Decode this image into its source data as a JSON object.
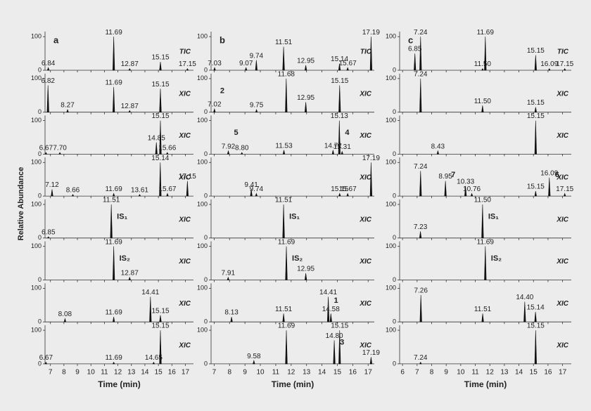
{
  "ylabel": "Relative Abundance",
  "chart_data": [
    {
      "type": "line",
      "label": "a",
      "xlabel": "Time (min)",
      "xlim": [
        6.6,
        17.6
      ],
      "xticks": [
        7,
        8,
        9,
        10,
        11,
        12,
        13,
        14,
        15,
        16,
        17
      ],
      "ylim": [
        0,
        115
      ],
      "yticks": [
        0,
        100
      ],
      "panels": [
        {
          "trace": "TIC",
          "peaks": [
            {
              "x": 6.84,
              "label": "6.84",
              "y": 8
            },
            {
              "x": 11.69,
              "label": "11.69",
              "y": 100
            },
            {
              "x": 12.87,
              "label": "12.87",
              "y": 5
            },
            {
              "x": 15.15,
              "label": "15.15",
              "y": 25
            },
            {
              "x": 17.15,
              "label": "17.15",
              "y": 5
            }
          ]
        },
        {
          "trace": "XIC",
          "peaks": [
            {
              "x": 6.82,
              "label": "6.82",
              "y": 80
            },
            {
              "x": 8.27,
              "label": "8.27",
              "y": 8
            },
            {
              "x": 11.69,
              "label": "11.69",
              "y": 75
            },
            {
              "x": 12.87,
              "label": "12.87",
              "y": 5
            },
            {
              "x": 15.15,
              "label": "15.15",
              "y": 70
            }
          ]
        },
        {
          "trace": "XIC",
          "peaks": [
            {
              "x": 6.67,
              "label": "6.67",
              "y": 5
            },
            {
              "x": 7.7,
              "label": "7.70",
              "y": 5
            },
            {
              "x": 14.85,
              "label": "14.85",
              "y": 35
            },
            {
              "x": 15.15,
              "label": "15.15",
              "y": 100
            },
            {
              "x": 15.66,
              "label": "15.66",
              "y": 5
            }
          ]
        },
        {
          "trace": "XIC",
          "peaks": [
            {
              "x": 7.12,
              "label": "7.12",
              "y": 20
            },
            {
              "x": 8.66,
              "label": "8.66",
              "y": 5
            },
            {
              "x": 11.69,
              "label": "11.69",
              "y": 8
            },
            {
              "x": 13.61,
              "label": "13.61",
              "y": 5
            },
            {
              "x": 15.14,
              "label": "15.14",
              "y": 100
            },
            {
              "x": 15.67,
              "label": "15.67",
              "y": 8
            },
            {
              "x": 17.15,
              "label": "17.15",
              "y": 45
            }
          ]
        },
        {
          "trace": "XIC",
          "peaks": [
            {
              "x": 6.85,
              "label": "6.85",
              "y": 4
            },
            {
              "x": 11.51,
              "label": "11.51",
              "y": 100,
              "note": "IS₁"
            }
          ]
        },
        {
          "trace": "XIC",
          "peaks": [
            {
              "x": 11.69,
              "label": "11.69",
              "y": 100,
              "note": "IS₂"
            },
            {
              "x": 12.87,
              "label": "12.87",
              "y": 8
            }
          ]
        },
        {
          "trace": "XIC",
          "peaks": [
            {
              "x": 8.08,
              "label": "8.08",
              "y": 10
            },
            {
              "x": 11.69,
              "label": "11.69",
              "y": 15
            },
            {
              "x": 14.41,
              "label": "14.41",
              "y": 75
            },
            {
              "x": 15.15,
              "label": "15.15",
              "y": 20
            }
          ]
        },
        {
          "trace": "XIC",
          "peaks": [
            {
              "x": 6.67,
              "label": "6.67",
              "y": 5
            },
            {
              "x": 11.69,
              "label": "11.69",
              "y": 5
            },
            {
              "x": 14.65,
              "label": "14.65",
              "y": 5
            },
            {
              "x": 15.15,
              "label": "15.15",
              "y": 100
            }
          ]
        }
      ]
    },
    {
      "type": "line",
      "label": "b",
      "xlabel": "Time (min)",
      "xlim": [
        6.8,
        17.4
      ],
      "xticks": [
        7,
        8,
        9,
        10,
        11,
        12,
        13,
        14,
        15,
        16,
        17
      ],
      "ylim": [
        0,
        115
      ],
      "yticks": [
        0,
        100
      ],
      "panels": [
        {
          "trace": "TIC",
          "peaks": [
            {
              "x": 7.03,
              "label": "7.03",
              "y": 8
            },
            {
              "x": 9.07,
              "label": "9.07",
              "y": 8
            },
            {
              "x": 9.74,
              "label": "9.74",
              "y": 30
            },
            {
              "x": 11.51,
              "label": "11.51",
              "y": 70
            },
            {
              "x": 12.95,
              "label": "12.95",
              "y": 15
            },
            {
              "x": 15.14,
              "label": "15.14",
              "y": 20
            },
            {
              "x": 15.67,
              "label": "15.67",
              "y": 8
            },
            {
              "x": 17.19,
              "label": "17.19",
              "y": 100
            }
          ]
        },
        {
          "trace": "XIC",
          "peaks": [
            {
              "x": 7.02,
              "label": "7.02",
              "y": 10,
              "note": "2"
            },
            {
              "x": 9.75,
              "label": "9.75",
              "y": 8
            },
            {
              "x": 11.68,
              "label": "11.68",
              "y": 100
            },
            {
              "x": 12.95,
              "label": "12.95",
              "y": 30
            },
            {
              "x": 15.15,
              "label": "15.15",
              "y": 80
            }
          ]
        },
        {
          "trace": "XIC",
          "peaks": [
            {
              "x": 7.92,
              "label": "7.92",
              "y": 10,
              "note": "5"
            },
            {
              "x": 8.8,
              "label": "8.80",
              "y": 5
            },
            {
              "x": 11.53,
              "label": "11.53",
              "y": 12
            },
            {
              "x": 14.72,
              "label": "14.72",
              "y": 12
            },
            {
              "x": 15.13,
              "label": "15.13",
              "y": 100,
              "note": "4"
            },
            {
              "x": 15.31,
              "label": "15.31",
              "y": 8
            }
          ]
        },
        {
          "trace": "XIC",
          "peaks": [
            {
              "x": 9.41,
              "label": "9.41",
              "y": 20
            },
            {
              "x": 9.74,
              "label": "9.74",
              "y": 8
            },
            {
              "x": 15.15,
              "label": "15.15",
              "y": 8
            },
            {
              "x": 15.67,
              "label": "15.67",
              "y": 8
            },
            {
              "x": 17.19,
              "label": "17.19",
              "y": 100
            }
          ]
        },
        {
          "trace": "XIC",
          "peaks": [
            {
              "x": 11.51,
              "label": "11.51",
              "y": 100,
              "note": "IS₁"
            }
          ]
        },
        {
          "trace": "XIC",
          "peaks": [
            {
              "x": 7.91,
              "label": "7.91",
              "y": 8
            },
            {
              "x": 11.69,
              "label": "11.69",
              "y": 100,
              "note": "IS₂"
            },
            {
              "x": 12.95,
              "label": "12.95",
              "y": 20
            }
          ]
        },
        {
          "trace": "XIC",
          "peaks": [
            {
              "x": 8.13,
              "label": "8.13",
              "y": 15
            },
            {
              "x": 11.51,
              "label": "11.51",
              "y": 25
            },
            {
              "x": 14.41,
              "label": "14.41",
              "y": 75,
              "note": "1"
            },
            {
              "x": 14.58,
              "label": "14.58",
              "y": 25
            }
          ]
        },
        {
          "trace": "XIC",
          "peaks": [
            {
              "x": 9.58,
              "label": "9.58",
              "y": 10
            },
            {
              "x": 11.69,
              "label": "11.69",
              "y": 100
            },
            {
              "x": 14.8,
              "label": "14.80",
              "y": 70,
              "note": "3"
            },
            {
              "x": 15.15,
              "label": "15.15",
              "y": 100
            },
            {
              "x": 17.19,
              "label": "17.19",
              "y": 20
            }
          ]
        }
      ]
    },
    {
      "type": "line",
      "label": "c",
      "xlabel": "Time (min)",
      "xlim": [
        5.8,
        17.6
      ],
      "xticks": [
        6,
        7,
        8,
        9,
        10,
        11,
        12,
        13,
        14,
        15,
        16,
        17
      ],
      "ylim": [
        0,
        115
      ],
      "yticks": [
        0,
        100
      ],
      "panels": [
        {
          "trace": "TIC",
          "peaks": [
            {
              "x": 6.85,
              "label": "6.85",
              "y": 50
            },
            {
              "x": 7.24,
              "label": "7.24",
              "y": 100
            },
            {
              "x": 11.5,
              "label": "11.50",
              "y": 5
            },
            {
              "x": 11.69,
              "label": "11.69",
              "y": 100
            },
            {
              "x": 15.15,
              "label": "15.15",
              "y": 45
            },
            {
              "x": 16.09,
              "label": "16.09",
              "y": 5
            },
            {
              "x": 17.15,
              "label": "17.15",
              "y": 5
            }
          ]
        },
        {
          "trace": "XIC",
          "peaks": [
            {
              "x": 7.24,
              "label": "7.24",
              "y": 100
            },
            {
              "x": 11.5,
              "label": "11.50",
              "y": 20
            },
            {
              "x": 15.15,
              "label": "15.15",
              "y": 15
            }
          ]
        },
        {
          "trace": "XIC",
          "peaks": [
            {
              "x": 8.43,
              "label": "8.43",
              "y": 10
            },
            {
              "x": 15.15,
              "label": "15.15",
              "y": 100
            }
          ]
        },
        {
          "trace": "XIC",
          "peaks": [
            {
              "x": 7.24,
              "label": "7.24",
              "y": 75
            },
            {
              "x": 8.95,
              "label": "8.95",
              "y": 45,
              "note": "7"
            },
            {
              "x": 10.33,
              "label": "10.33",
              "y": 30
            },
            {
              "x": 10.76,
              "label": "10.76",
              "y": 8
            },
            {
              "x": 15.15,
              "label": "15.15",
              "y": 15
            },
            {
              "x": 16.09,
              "label": "16.09",
              "y": 55,
              "note": "6"
            },
            {
              "x": 17.15,
              "label": "17.15",
              "y": 8
            }
          ]
        },
        {
          "trace": "XIC",
          "peaks": [
            {
              "x": 7.23,
              "label": "7.23",
              "y": 20
            },
            {
              "x": 11.5,
              "label": "11.50",
              "y": 100,
              "note": "IS₁"
            }
          ]
        },
        {
          "trace": "XIC",
          "peaks": [
            {
              "x": 11.69,
              "label": "11.69",
              "y": 100,
              "note": "IS₂"
            }
          ]
        },
        {
          "trace": "XIC",
          "peaks": [
            {
              "x": 7.26,
              "label": "7.26",
              "y": 80
            },
            {
              "x": 11.51,
              "label": "11.51",
              "y": 25
            },
            {
              "x": 14.4,
              "label": "14.40",
              "y": 60
            },
            {
              "x": 15.14,
              "label": "15.14",
              "y": 30
            }
          ]
        },
        {
          "trace": "XIC",
          "peaks": [
            {
              "x": 7.24,
              "label": "7.24",
              "y": 5
            },
            {
              "x": 15.15,
              "label": "15.15",
              "y": 100
            }
          ]
        }
      ]
    }
  ]
}
